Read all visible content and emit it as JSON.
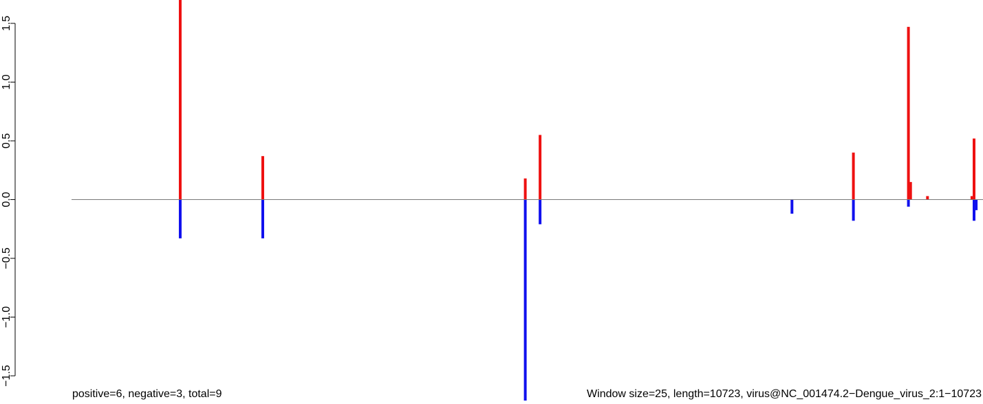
{
  "chart_data": {
    "type": "bar",
    "x_range": [
      0,
      10723
    ],
    "ylim": [
      -1.5,
      1.5
    ],
    "yticks": [
      -1.5,
      -1.0,
      -0.5,
      0.0,
      0.5,
      1.0,
      1.5
    ],
    "ytick_labels": [
      "−1.5",
      "−1.0",
      "−0.5",
      "0.0",
      "0.5",
      "1.0",
      "1.5"
    ],
    "grid": false,
    "legend": "none",
    "colors": {
      "positive": "#ee1111",
      "negative": "#1111ee",
      "baseline": "#777777"
    },
    "series": [
      {
        "values": [
          {
            "x": 1275,
            "y": 1.72
          },
          {
            "x": 2250,
            "y": 0.37
          },
          {
            "x": 5350,
            "y": 0.18
          },
          {
            "x": 5525,
            "y": 0.55
          },
          {
            "x": 9225,
            "y": 0.4
          },
          {
            "x": 9875,
            "y": 1.47
          },
          {
            "x": 9900,
            "y": 0.15
          },
          {
            "x": 10100,
            "y": 0.03
          },
          {
            "x": 10625,
            "y": 0.03
          },
          {
            "x": 10650,
            "y": 0.52
          }
        ]
      },
      {
        "values": [
          {
            "x": 1275,
            "y": -0.33
          },
          {
            "x": 2250,
            "y": -0.33
          },
          {
            "x": 5350,
            "y": -1.72
          },
          {
            "x": 5525,
            "y": -0.21
          },
          {
            "x": 8500,
            "y": -0.12
          },
          {
            "x": 9225,
            "y": -0.18
          },
          {
            "x": 9875,
            "y": -0.06
          },
          {
            "x": 10650,
            "y": -0.18
          },
          {
            "x": 10675,
            "y": -0.09
          }
        ]
      }
    ],
    "footer_left": "positive=6, negative=3, total=9",
    "footer_right": "Window size=25, length=10723, virus@NC_001474.2−Dengue_virus_2:1−10723"
  }
}
